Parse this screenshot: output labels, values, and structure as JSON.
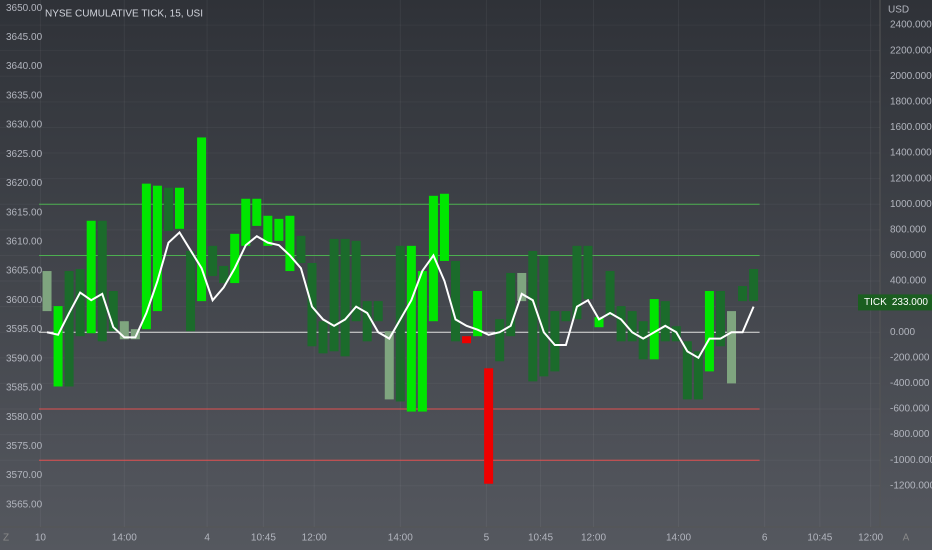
{
  "chart_data": {
    "type": "candlestick",
    "title": "NYSE CUMULATIVE TICK, 15, USI",
    "y2_unit": "USD",
    "ylim": [
      3561.2,
      3651.4
    ],
    "yticks": [
      {
        "value": 3565,
        "label": "3565.00"
      },
      {
        "value": 3570,
        "label": "3570.00"
      },
      {
        "value": 3575,
        "label": "3575.00"
      },
      {
        "value": 3580,
        "label": "3580.00"
      },
      {
        "value": 3585,
        "label": "3585.00"
      },
      {
        "value": 3590,
        "label": "3590.00"
      },
      {
        "value": 3595,
        "label": "3595.00"
      },
      {
        "value": 3600,
        "label": "3600.00"
      },
      {
        "value": 3605,
        "label": "3605.00"
      },
      {
        "value": 3610,
        "label": "3610.00"
      },
      {
        "value": 3615,
        "label": "3615.00"
      },
      {
        "value": 3620,
        "label": "3620.00"
      },
      {
        "value": 3625,
        "label": "3625.00"
      },
      {
        "value": 3630,
        "label": "3630.00"
      },
      {
        "value": 3635,
        "label": "3635.00"
      },
      {
        "value": 3640,
        "label": "3640.00"
      },
      {
        "value": 3645,
        "label": "3645.00"
      },
      {
        "value": 3650,
        "label": "3650.00"
      }
    ],
    "y2lim": [
      -1522,
      2596
    ],
    "y2ticks": [
      {
        "value": -1200,
        "label": "-1200.000"
      },
      {
        "value": -1000,
        "label": "-1000.000"
      },
      {
        "value": -800,
        "label": "-800.000"
      },
      {
        "value": -600,
        "label": "-600.000"
      },
      {
        "value": -400,
        "label": "-400.000"
      },
      {
        "value": -200,
        "label": "-200.000"
      },
      {
        "value": 0,
        "label": "0.000"
      },
      {
        "value": 200,
        "label": "200.000"
      },
      {
        "value": 400,
        "label": "400.000"
      },
      {
        "value": 600,
        "label": "600.000"
      },
      {
        "value": 800,
        "label": "800.000"
      },
      {
        "value": 1000,
        "label": "1000.000"
      },
      {
        "value": 1200,
        "label": "1200.000"
      },
      {
        "value": 1400,
        "label": "1400.000"
      },
      {
        "value": 1600,
        "label": "1600.000"
      },
      {
        "value": 1800,
        "label": "1800.000"
      },
      {
        "value": 2000,
        "label": "2000.000"
      },
      {
        "value": 2200,
        "label": "2200.000"
      },
      {
        "value": 2400,
        "label": "2400.000"
      }
    ],
    "xlim": [
      -4.26,
      75.45
    ],
    "xticks": [
      {
        "value": -0.6,
        "label": "10"
      },
      {
        "value": 7,
        "label": "14:00"
      },
      {
        "value": 14.5,
        "label": "4"
      },
      {
        "value": 19.6,
        "label": "10:45"
      },
      {
        "value": 24.2,
        "label": "12:00"
      },
      {
        "value": 32,
        "label": "14:00"
      },
      {
        "value": 39.8,
        "label": "5"
      },
      {
        "value": 44.7,
        "label": "10:45"
      },
      {
        "value": 49.5,
        "label": "12:00"
      },
      {
        "value": 57.2,
        "label": "14:00"
      },
      {
        "value": 65,
        "label": "6"
      },
      {
        "value": 70,
        "label": "10:45"
      },
      {
        "value": 74.6,
        "label": "12:00"
      }
    ],
    "levels": [
      {
        "value": 1000,
        "color": "#4caf50"
      },
      {
        "value": 600,
        "color": "#4caf50"
      },
      {
        "value": 0,
        "color": "#e0e0e0"
      },
      {
        "value": -600,
        "color": "#e05050"
      },
      {
        "value": -1000,
        "color": "#e05050"
      }
    ],
    "candles": [
      {
        "open": 478,
        "close": 165,
        "color": "#7fa57f"
      },
      {
        "open": 204,
        "close": -424,
        "color": "#00e600"
      },
      {
        "open": 478,
        "close": -424,
        "color": "#1b6b2b"
      },
      {
        "open": 494,
        "close": -31,
        "color": "#1b6b2b"
      },
      {
        "open": 871,
        "close": -8,
        "color": "#00e600"
      },
      {
        "open": 871,
        "close": -71,
        "color": "#1b6b2b"
      },
      {
        "open": 322,
        "close": 8,
        "color": "#1b6b2b"
      },
      {
        "open": 86,
        "close": -55,
        "color": "#7fa57f"
      },
      {
        "open": 24,
        "close": -55,
        "color": "#7fa57f"
      },
      {
        "open": 1161,
        "close": 24,
        "color": "#00e600"
      },
      {
        "open": 1145,
        "close": 165,
        "color": "#00e600"
      },
      {
        "open": 1129,
        "close": 792,
        "color": "#1b6b2b"
      },
      {
        "open": 1129,
        "close": 808,
        "color": "#00e600"
      },
      {
        "open": 635,
        "close": 8,
        "color": "#1b6b2b"
      },
      {
        "open": 1522,
        "close": 243,
        "color": "#00e600"
      },
      {
        "open": 675,
        "close": 439,
        "color": "#1b6b2b"
      },
      {
        "open": 518,
        "close": 384,
        "color": "#1b6b2b"
      },
      {
        "open": 769,
        "close": 384,
        "color": "#00e600"
      },
      {
        "open": 1043,
        "close": 675,
        "color": "#00e600"
      },
      {
        "open": 1043,
        "close": 831,
        "color": "#00e600"
      },
      {
        "open": 910,
        "close": 675,
        "color": "#00e600"
      },
      {
        "open": 886,
        "close": 714,
        "color": "#00e600"
      },
      {
        "open": 910,
        "close": 478,
        "color": "#00e600"
      },
      {
        "open": 753,
        "close": 541,
        "color": "#1b6b2b"
      },
      {
        "open": 541,
        "close": -110,
        "color": "#1b6b2b"
      },
      {
        "open": 86,
        "close": -165,
        "color": "#1b6b2b"
      },
      {
        "open": 729,
        "close": -149,
        "color": "#1b6b2b"
      },
      {
        "open": 729,
        "close": -188,
        "color": "#1b6b2b"
      },
      {
        "open": 714,
        "close": 86,
        "color": "#1b6b2b"
      },
      {
        "open": 243,
        "close": -71,
        "color": "#1b6b2b"
      },
      {
        "open": 243,
        "close": 86,
        "color": "#1b6b2b"
      },
      {
        "open": 8,
        "close": -525,
        "color": "#7fa57f"
      },
      {
        "open": 675,
        "close": -541,
        "color": "#1b6b2b"
      },
      {
        "open": 675,
        "close": -620,
        "color": "#00e600"
      },
      {
        "open": 478,
        "close": -620,
        "color": "#00e600"
      },
      {
        "open": 1066,
        "close": 86,
        "color": "#00e600"
      },
      {
        "open": 1082,
        "close": 557,
        "color": "#00e600"
      },
      {
        "open": 557,
        "close": -71,
        "color": "#1b6b2b"
      },
      {
        "open": -31,
        "close": -86,
        "color": "#ee0000"
      },
      {
        "open": 322,
        "close": -31,
        "color": "#00e600"
      },
      {
        "open": -282,
        "close": -1184,
        "color": "#ee0000"
      },
      {
        "open": 102,
        "close": -227,
        "color": "#1b6b2b"
      },
      {
        "open": 463,
        "close": -31,
        "color": "#1b6b2b"
      },
      {
        "open": 463,
        "close": 243,
        "color": "#7fa57f"
      },
      {
        "open": 635,
        "close": -384,
        "color": "#1b6b2b"
      },
      {
        "open": 596,
        "close": -345,
        "color": "#1b6b2b"
      },
      {
        "open": 165,
        "close": -306,
        "color": "#1b6b2b"
      },
      {
        "open": 165,
        "close": 86,
        "color": "#1b6b2b"
      },
      {
        "open": 675,
        "close": 102,
        "color": "#1b6b2b"
      },
      {
        "open": 675,
        "close": 259,
        "color": "#1b6b2b"
      },
      {
        "open": 118,
        "close": 39,
        "color": "#00e600"
      },
      {
        "open": 478,
        "close": 125,
        "color": "#1b6b2b"
      },
      {
        "open": 204,
        "close": -71,
        "color": "#1b6b2b"
      },
      {
        "open": 165,
        "close": -71,
        "color": "#1b6b2b"
      },
      {
        "open": 86,
        "close": -212,
        "color": "#1b6b2b"
      },
      {
        "open": 259,
        "close": -212,
        "color": "#00e600"
      },
      {
        "open": 243,
        "close": -71,
        "color": "#1b6b2b"
      },
      {
        "open": 47,
        "close": -71,
        "color": "#1b6b2b"
      },
      {
        "open": -71,
        "close": -525,
        "color": "#1b6b2b"
      },
      {
        "open": -149,
        "close": -525,
        "color": "#1b6b2b"
      },
      {
        "open": 322,
        "close": -306,
        "color": "#00e600"
      },
      {
        "open": 322,
        "close": -110,
        "color": "#1b6b2b"
      },
      {
        "open": 165,
        "close": -400,
        "color": "#7fa57f"
      },
      {
        "open": 361,
        "close": 243,
        "color": "#1b6b2b"
      },
      {
        "open": 494,
        "close": 243,
        "color": "#1b6b2b"
      }
    ],
    "ma": {
      "color": "#ffffff",
      "values": [
        0,
        -20,
        150,
        310,
        250,
        300,
        40,
        -40,
        -40,
        150,
        400,
        700,
        780,
        640,
        500,
        250,
        350,
        500,
        680,
        750,
        700,
        680,
        600,
        500,
        200,
        100,
        50,
        100,
        200,
        150,
        0,
        -50,
        100,
        250,
        480,
        600,
        400,
        100,
        50,
        20,
        -20,
        0,
        50,
        300,
        250,
        0,
        -100,
        -100,
        200,
        250,
        100,
        150,
        100,
        0,
        -50,
        0,
        50,
        0,
        -150,
        -200,
        -50,
        -50,
        0,
        0,
        200
      ]
    },
    "last": {
      "name": "TICK",
      "value": 233,
      "label": "233.000"
    },
    "buttons": [
      "Z",
      "A"
    ]
  }
}
